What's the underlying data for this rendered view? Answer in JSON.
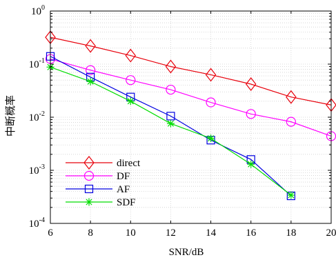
{
  "chart_data": {
    "type": "line",
    "title": "",
    "xlabel": "SNR/dB",
    "ylabel": "中断概率",
    "y_scale": "log",
    "grid": true,
    "legend_position": "bottom-left",
    "xlim": [
      6,
      20
    ],
    "ylim": [
      0.0001,
      1
    ],
    "x_ticks": [
      6,
      8,
      10,
      12,
      14,
      16,
      18,
      20
    ],
    "x_tick_labels": [
      "6",
      "8",
      "10",
      "12",
      "14",
      "16",
      "18",
      "20"
    ],
    "y_ticks": [
      0.0001,
      0.001,
      0.01,
      0.1,
      1
    ],
    "y_tick_labels": [
      {
        "base": "10",
        "exp": "-4"
      },
      {
        "base": "10",
        "exp": "-3"
      },
      {
        "base": "10",
        "exp": "-2"
      },
      {
        "base": "10",
        "exp": "-1"
      },
      {
        "base": "10",
        "exp": "0"
      }
    ],
    "series": [
      {
        "name": "direct",
        "color": "#e8000b",
        "marker": "diamond",
        "x": [
          6,
          8,
          10,
          12,
          14,
          16,
          18,
          20
        ],
        "values": [
          0.32,
          0.22,
          0.145,
          0.09,
          0.063,
          0.042,
          0.024,
          0.017
        ]
      },
      {
        "name": "DF",
        "color": "#ff00ff",
        "marker": "circle",
        "x": [
          6,
          8,
          10,
          12,
          14,
          16,
          18,
          20
        ],
        "values": [
          0.125,
          0.077,
          0.05,
          0.033,
          0.019,
          0.0115,
          0.0082,
          0.0044
        ]
      },
      {
        "name": "AF",
        "color": "#0000e0",
        "marker": "square",
        "x": [
          6,
          8,
          10,
          12,
          14,
          16,
          18
        ],
        "values": [
          0.14,
          0.057,
          0.024,
          0.0105,
          0.0037,
          0.0016,
          0.00033
        ]
      },
      {
        "name": "SDF",
        "color": "#00dd00",
        "marker": "asterisk",
        "x": [
          6,
          8,
          10,
          12,
          14,
          16,
          18
        ],
        "values": [
          0.088,
          0.047,
          0.02,
          0.0076,
          0.004,
          0.0013,
          0.00034
        ]
      }
    ]
  }
}
